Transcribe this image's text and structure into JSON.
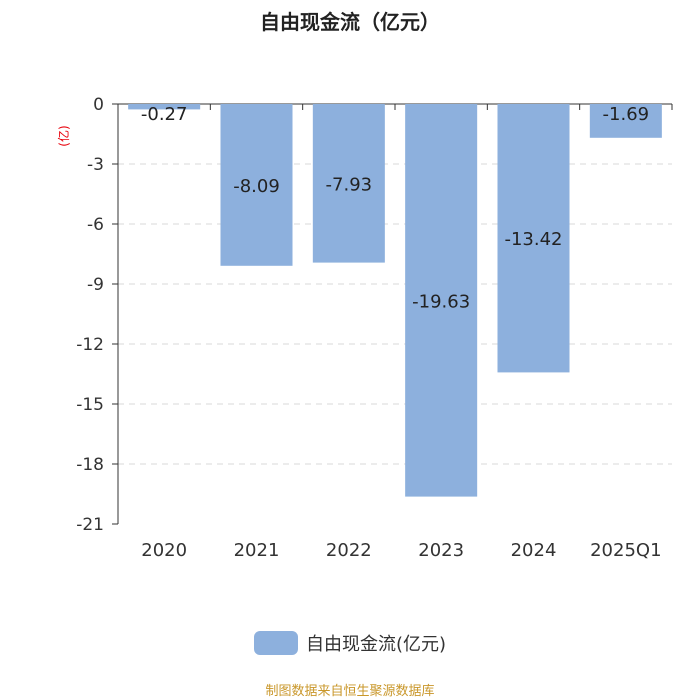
{
  "chart_data": {
    "type": "bar",
    "title": "自由现金流（亿元）",
    "ylabel": "(亿)",
    "categories": [
      "2020",
      "2021",
      "2022",
      "2023",
      "2024",
      "2025Q1"
    ],
    "series": [
      {
        "name": "自由现金流(亿元)",
        "values": [
          -0.27,
          -8.09,
          -7.93,
          -19.63,
          -13.42,
          -1.69
        ]
      }
    ],
    "data_labels": [
      "-0.27",
      "-8.09",
      "-7.93",
      "-19.63",
      "-13.42",
      "-1.69"
    ],
    "ylim": [
      -21,
      0
    ],
    "yticks": [
      0,
      -3,
      -6,
      -9,
      -12,
      -15,
      -18,
      -21
    ],
    "grid": true,
    "legend_position": "bottom-center"
  },
  "footer": {
    "text": "制图数据来自恒生聚源数据库"
  },
  "colors": {
    "bar": "#8db0dd",
    "axis": "#333333",
    "grid": "#d9d9d9",
    "ylabel": "#e8000b",
    "footer": "#c9972a"
  }
}
